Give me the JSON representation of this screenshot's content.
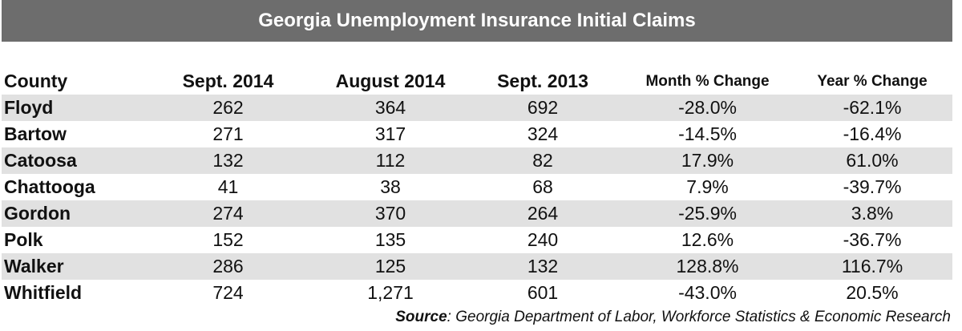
{
  "title": "Georgia Unemployment Insurance Initial Claims",
  "chart_data": {
    "type": "table",
    "title": "Georgia Unemployment Insurance Initial Claims",
    "columns": [
      "County",
      "Sept. 2014",
      "August 2014",
      "Sept. 2013",
      "Month % Change",
      "Year % Change"
    ],
    "rows": [
      [
        "Floyd",
        "262",
        "364",
        "692",
        "-28.0%",
        "-62.1%"
      ],
      [
        "Bartow",
        "271",
        "317",
        "324",
        "-14.5%",
        "-16.4%"
      ],
      [
        "Catoosa",
        "132",
        "112",
        "82",
        "17.9%",
        "61.0%"
      ],
      [
        "Chattooga",
        "41",
        "38",
        "68",
        "7.9%",
        "-39.7%"
      ],
      [
        "Gordon",
        "274",
        "370",
        "264",
        "-25.9%",
        "3.8%"
      ],
      [
        "Polk",
        "152",
        "135",
        "240",
        "12.6%",
        "-36.7%"
      ],
      [
        "Walker",
        "286",
        "125",
        "132",
        "128.8%",
        "116.7%"
      ],
      [
        "Whitfield",
        "724",
        "1,271",
        "601",
        "-43.0%",
        "20.5%"
      ]
    ]
  },
  "source": {
    "label": "Source",
    "text": ": Georgia Department of Labor, Workforce Statistics & Economic Research"
  },
  "colors": {
    "title_bar": "#6d6d6d",
    "row_shade": "#e1e1e1"
  }
}
